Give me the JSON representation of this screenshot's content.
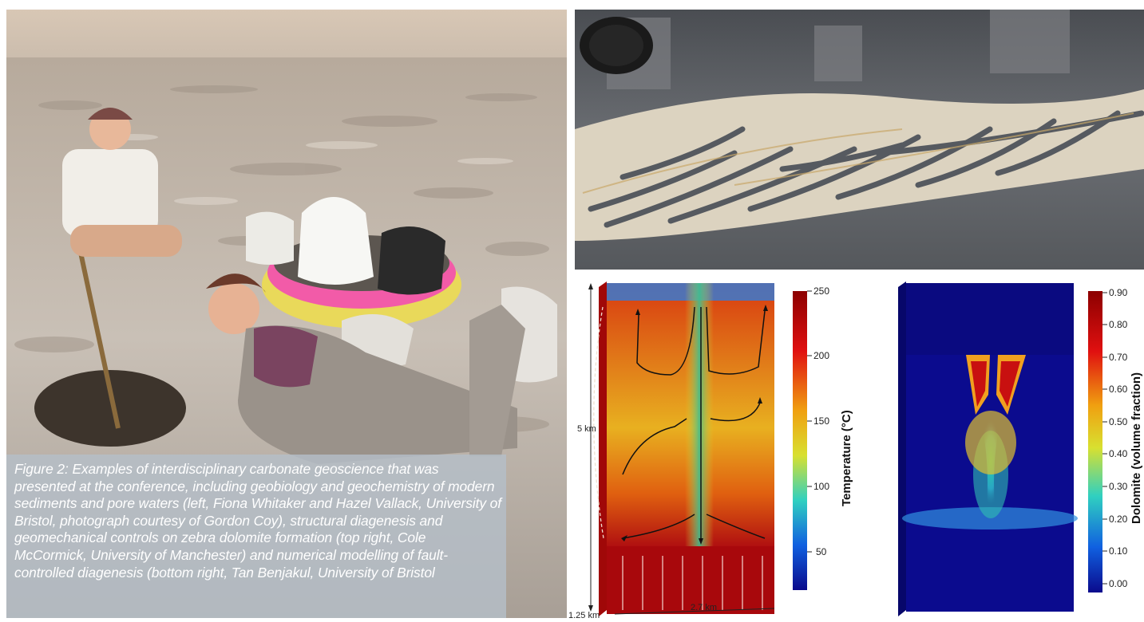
{
  "caption": "Figure 2: Examples of interdisciplinary carbonate geoscience that was presented at the conference, including geobiology and geochemistry of modern sediments and pore waters (left, Fiona Whitaker and Hazel Vallack, University of Bristol, photograph courtesy of Gordon Coy), structural diagenesis and geomechanical controls on zebra dolomite formation (top right, Cole McCormick, University of Manchester) and numerical modelling of fault-controlled diagenesis (bottom right, Tan Benjakul, University of Bristol",
  "temperature_model": {
    "colorbar_title": "Temperature (°C)",
    "ticks": [
      "250",
      "200",
      "150",
      "100",
      "50"
    ],
    "depth_label": "5 km",
    "width_label": "2.7 km",
    "thickness_label": "1.25 km"
  },
  "dolomite_model": {
    "colorbar_title": "Dolomite (volume fraction)",
    "ticks": [
      "0.90",
      "0.80",
      "0.70",
      "0.60",
      "0.50",
      "0.40",
      "0.30",
      "0.20",
      "0.10",
      "0.00"
    ]
  },
  "colors": {
    "hot": "#b00000",
    "cold": "#0a0a8c",
    "caption_bg": "#b4bec8"
  }
}
